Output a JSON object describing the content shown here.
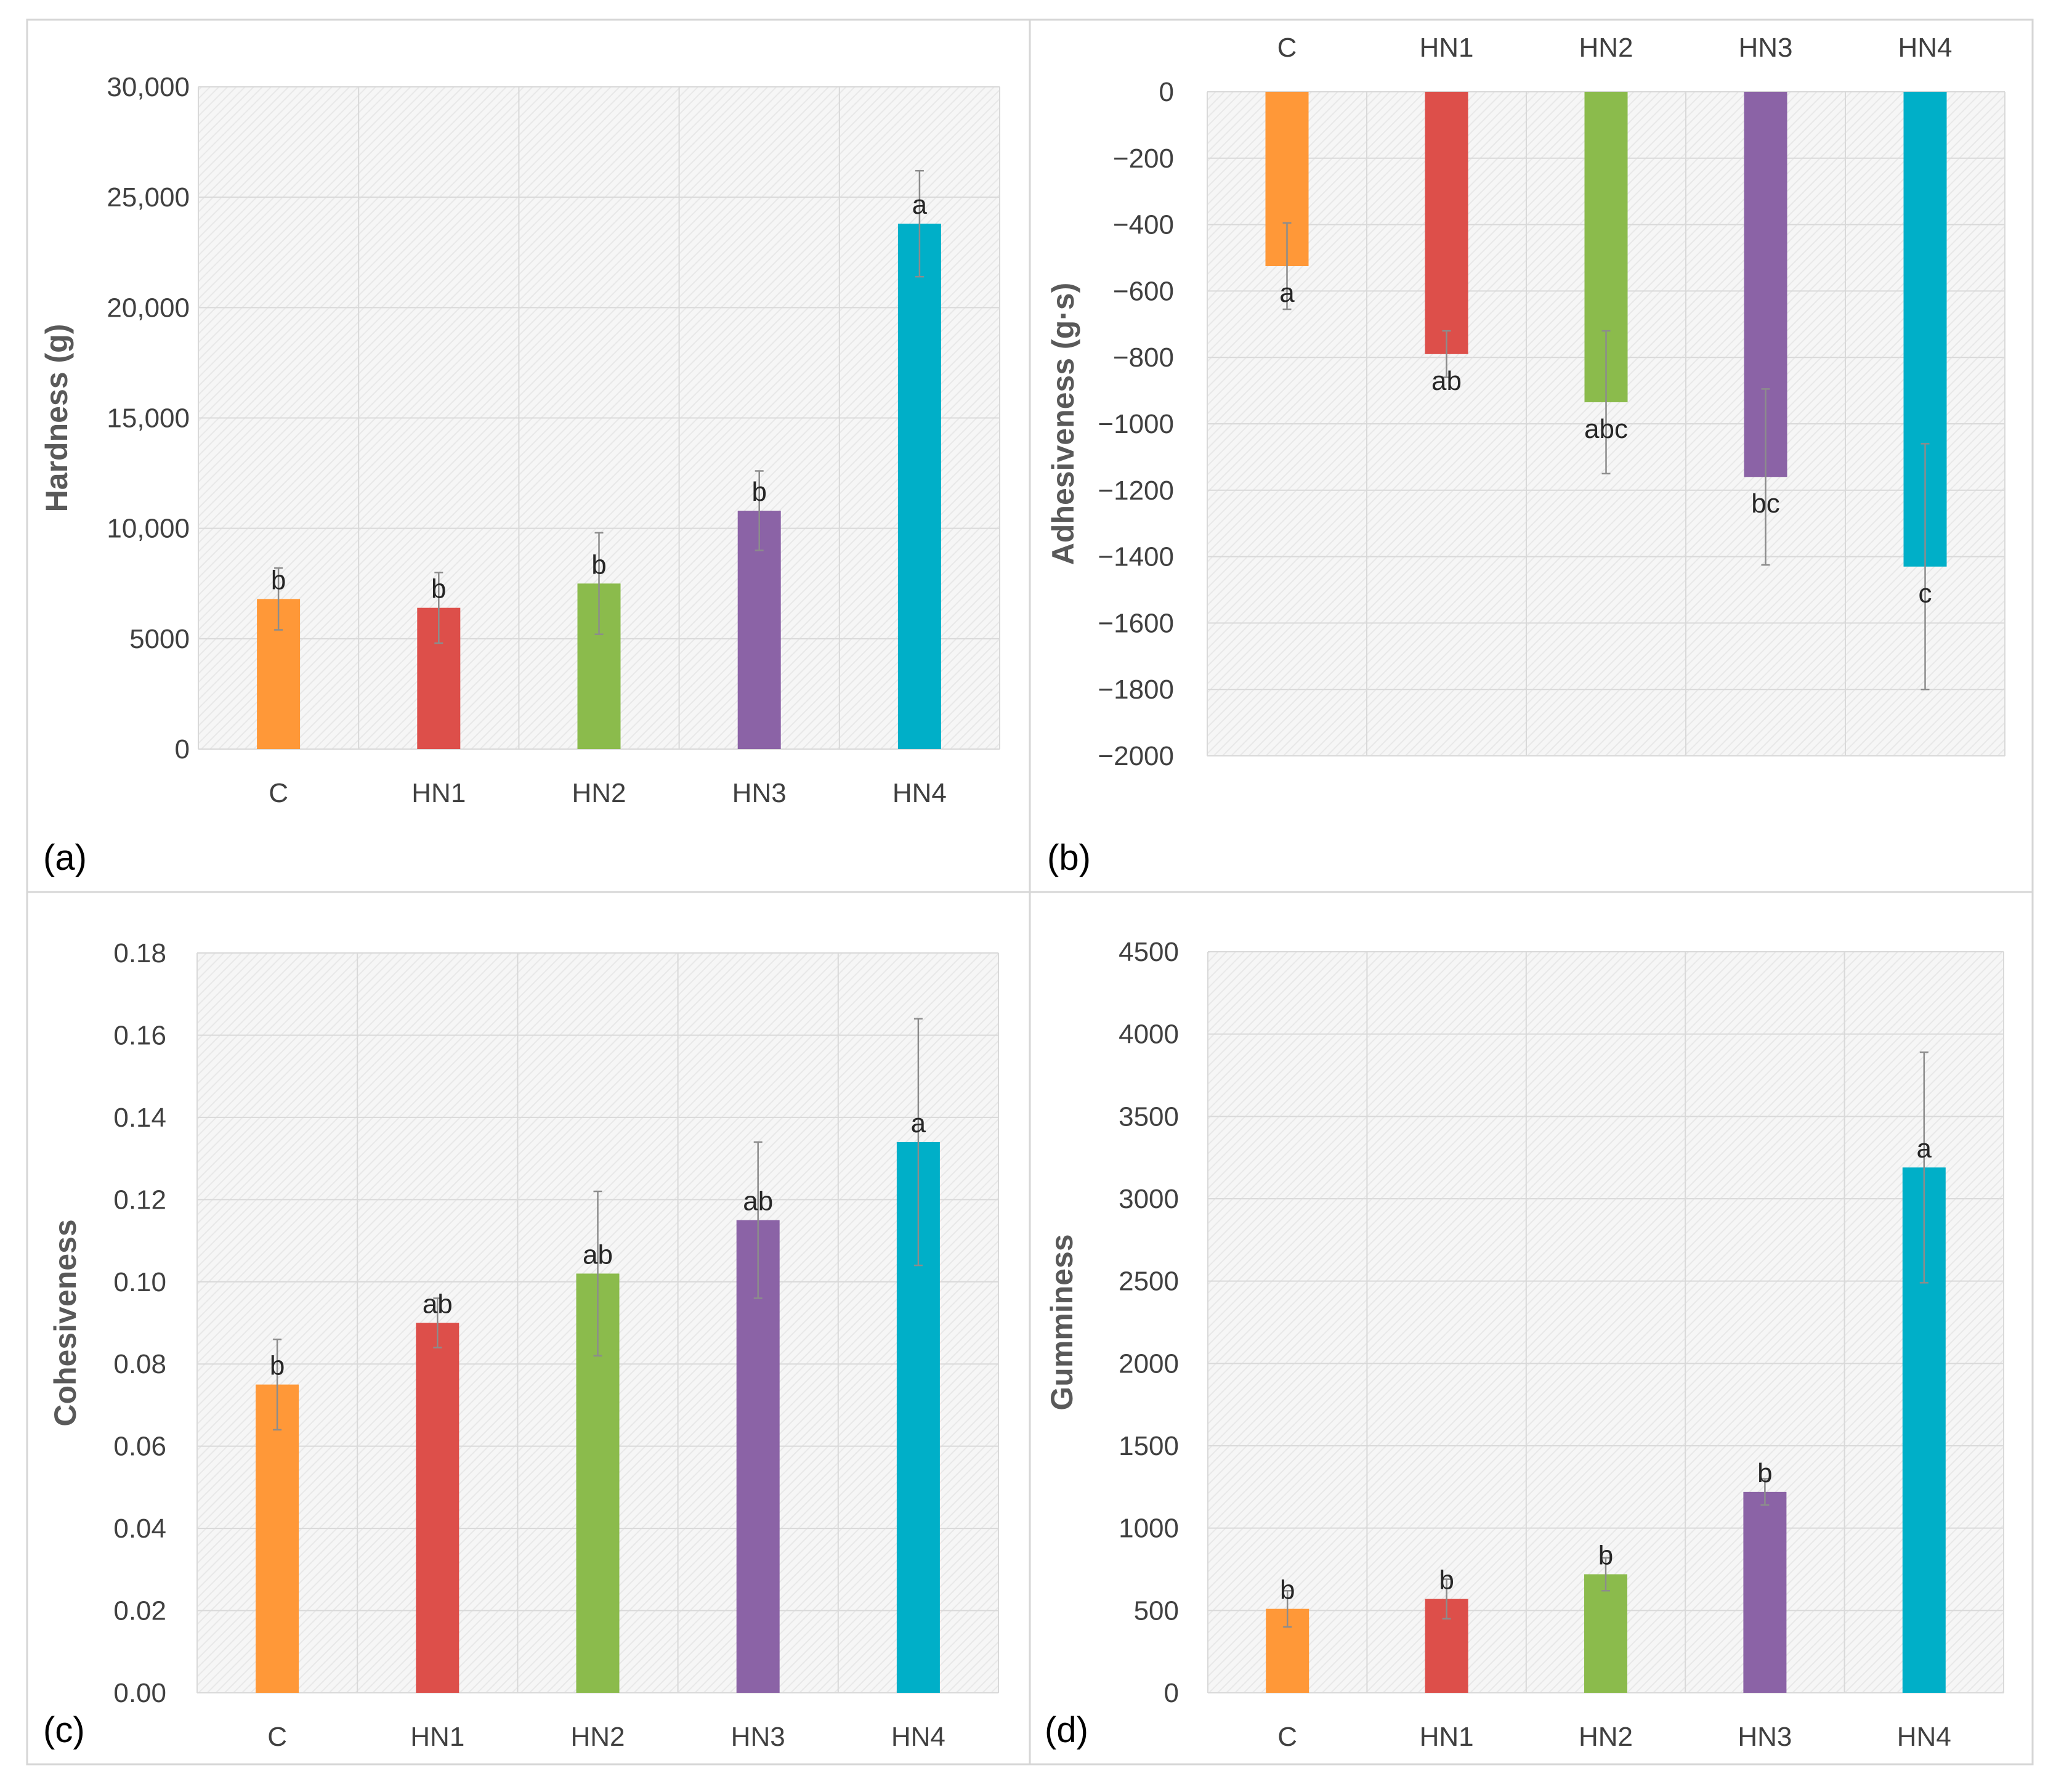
{
  "panels": [
    {
      "id": "a",
      "panel_label": "(a)",
      "chart_data": {
        "type": "bar",
        "categories": [
          "C",
          "HN1",
          "HN2",
          "HN3",
          "HN4"
        ],
        "values": [
          6800,
          6400,
          7500,
          10800,
          23800
        ],
        "errors": [
          1400,
          1600,
          2300,
          1800,
          2400
        ],
        "letters": [
          "b",
          "b",
          "b",
          "b",
          "a"
        ],
        "ylabel": "Hardness (g)",
        "ylim": [
          0,
          30000
        ],
        "yticks": [
          0,
          5000,
          10000,
          15000,
          20000,
          25000,
          30000
        ],
        "ytick_labels": [
          "0",
          "5000",
          "10,000",
          "15,000",
          "20,000",
          "25,000",
          "30,000"
        ],
        "category_axis": "bottom",
        "grid": true
      }
    },
    {
      "id": "b",
      "panel_label": "(b)",
      "chart_data": {
        "type": "bar",
        "categories": [
          "C",
          "HN1",
          "HN2",
          "HN3",
          "HN4"
        ],
        "values": [
          -525,
          -790,
          -935,
          -1160,
          -1430
        ],
        "errors": [
          130,
          70,
          215,
          265,
          370
        ],
        "letters": [
          "a",
          "ab",
          "abc",
          "bc",
          "c"
        ],
        "ylabel": "Adhesiveness (g·s)",
        "ylim": [
          -2000,
          0
        ],
        "yticks": [
          0,
          -200,
          -400,
          -600,
          -800,
          -1000,
          -1200,
          -1400,
          -1600,
          -1800,
          -2000
        ],
        "ytick_labels": [
          "0",
          "−200",
          "−400",
          "−600",
          "−800",
          "−1000",
          "−1200",
          "−1400",
          "−1600",
          "−1800",
          "−2000"
        ],
        "category_axis": "top",
        "grid": true
      }
    },
    {
      "id": "c",
      "panel_label": "(c)",
      "chart_data": {
        "type": "bar",
        "categories": [
          "C",
          "HN1",
          "HN2",
          "HN3",
          "HN4"
        ],
        "values": [
          0.075,
          0.09,
          0.102,
          0.115,
          0.134
        ],
        "errors": [
          0.011,
          0.006,
          0.02,
          0.019,
          0.03
        ],
        "letters": [
          "b",
          "ab",
          "ab",
          "ab",
          "a"
        ],
        "ylabel": "Cohesiveness",
        "ylim": [
          0,
          0.18
        ],
        "yticks": [
          0,
          0.02,
          0.04,
          0.06,
          0.08,
          0.1,
          0.12,
          0.14,
          0.16,
          0.18
        ],
        "ytick_labels": [
          "0.00",
          "0.02",
          "0.04",
          "0.06",
          "0.08",
          "0.10",
          "0.12",
          "0.14",
          "0.16",
          "0.18"
        ],
        "category_axis": "bottom",
        "grid": true
      }
    },
    {
      "id": "d",
      "panel_label": "(d)",
      "chart_data": {
        "type": "bar",
        "categories": [
          "C",
          "HN1",
          "HN2",
          "HN3",
          "HN4"
        ],
        "values": [
          510,
          570,
          720,
          1220,
          3190
        ],
        "errors": [
          110,
          120,
          100,
          80,
          700
        ],
        "letters": [
          "b",
          "b",
          "b",
          "b",
          "a"
        ],
        "ylabel": "Gumminess",
        "ylim": [
          0,
          4500
        ],
        "yticks": [
          0,
          500,
          1000,
          1500,
          2000,
          2500,
          3000,
          3500,
          4000,
          4500
        ],
        "ytick_labels": [
          "0",
          "500",
          "1000",
          "1500",
          "2000",
          "2500",
          "3000",
          "3500",
          "4000",
          "4500"
        ],
        "category_axis": "bottom",
        "grid": true
      }
    }
  ],
  "bar_colors": [
    "#FF9838",
    "#DD4F4A",
    "#8BBB4C",
    "#8B63A6",
    "#00AFC8"
  ],
  "error_bar_color": "#8C8C8C",
  "plot_background": "#F4F4F4",
  "gridline_color": "#D9D9D9",
  "frame_color": "#D6D6D6",
  "text_color": "#404040",
  "label_color": "#595959"
}
